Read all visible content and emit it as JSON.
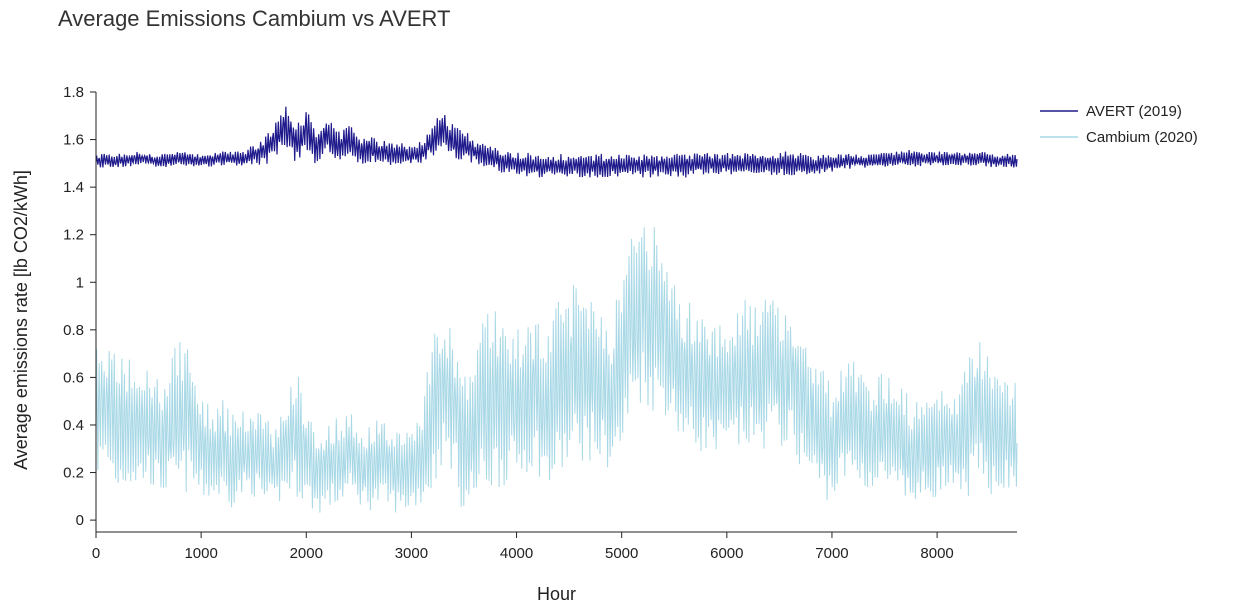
{
  "chart_data": {
    "type": "line",
    "title": "Average Emissions Cambium vs AVERT",
    "xlabel": "Hour",
    "ylabel": "Average emissions rate [lb CO2/kWh]",
    "xlim": [
      0,
      8760
    ],
    "ylim": [
      -0.05,
      1.8
    ],
    "x_ticks": [
      0,
      1000,
      2000,
      3000,
      4000,
      5000,
      6000,
      7000,
      8000
    ],
    "y_ticks": [
      0,
      0.2,
      0.4,
      0.6,
      0.8,
      1,
      1.2,
      1.4,
      1.6,
      1.8
    ],
    "y_tick_labels": [
      "0",
      "0.2",
      "0.4",
      "0.6",
      "0.8",
      "1",
      "1.2",
      "1.4",
      "1.6",
      "1.8"
    ],
    "grid": false,
    "legend_position": "top-right",
    "series": [
      {
        "name": "AVERT (2019)",
        "color": "#1f1a8c",
        "x": [
          0,
          200,
          400,
          600,
          800,
          1000,
          1200,
          1400,
          1600,
          1700,
          1800,
          1900,
          2000,
          2100,
          2200,
          2300,
          2400,
          2500,
          2600,
          2700,
          2800,
          2900,
          3000,
          3100,
          3200,
          3300,
          3400,
          3500,
          3600,
          3700,
          3800,
          3900,
          4000,
          4200,
          4400,
          4600,
          4800,
          5000,
          5200,
          5400,
          5600,
          5800,
          6000,
          6200,
          6400,
          6600,
          6800,
          7000,
          7200,
          7400,
          7600,
          7800,
          8000,
          8200,
          8400,
          8600,
          8760
        ],
        "y": [
          1.51,
          1.51,
          1.52,
          1.51,
          1.52,
          1.51,
          1.52,
          1.52,
          1.55,
          1.6,
          1.66,
          1.58,
          1.64,
          1.57,
          1.62,
          1.56,
          1.6,
          1.55,
          1.56,
          1.55,
          1.54,
          1.54,
          1.53,
          1.55,
          1.6,
          1.64,
          1.59,
          1.58,
          1.55,
          1.53,
          1.52,
          1.5,
          1.5,
          1.49,
          1.49,
          1.49,
          1.49,
          1.49,
          1.49,
          1.49,
          1.49,
          1.5,
          1.5,
          1.5,
          1.5,
          1.5,
          1.49,
          1.5,
          1.51,
          1.51,
          1.52,
          1.52,
          1.52,
          1.52,
          1.52,
          1.51,
          1.51
        ],
        "band": [
          0.03,
          0.03,
          0.03,
          0.03,
          0.03,
          0.03,
          0.03,
          0.03,
          0.06,
          0.08,
          0.1,
          0.08,
          0.09,
          0.08,
          0.08,
          0.07,
          0.07,
          0.06,
          0.06,
          0.05,
          0.05,
          0.05,
          0.04,
          0.05,
          0.07,
          0.08,
          0.07,
          0.07,
          0.05,
          0.05,
          0.05,
          0.05,
          0.05,
          0.05,
          0.05,
          0.05,
          0.05,
          0.05,
          0.05,
          0.05,
          0.05,
          0.05,
          0.05,
          0.05,
          0.05,
          0.05,
          0.05,
          0.04,
          0.03,
          0.03,
          0.03,
          0.04,
          0.03,
          0.03,
          0.03,
          0.03,
          0.03
        ]
      },
      {
        "name": "Cambium (2020)",
        "color": "#a8d8e6",
        "x": [
          0,
          100,
          200,
          300,
          400,
          500,
          600,
          700,
          800,
          900,
          1000,
          1100,
          1200,
          1300,
          1400,
          1500,
          1600,
          1700,
          1800,
          1900,
          2000,
          2100,
          2200,
          2300,
          2400,
          2500,
          2600,
          2700,
          2800,
          2900,
          3000,
          3100,
          3200,
          3300,
          3400,
          3500,
          3600,
          3700,
          3800,
          3900,
          4000,
          4100,
          4200,
          4300,
          4400,
          4500,
          4600,
          4700,
          4800,
          4900,
          5000,
          5100,
          5200,
          5300,
          5400,
          5500,
          5600,
          5700,
          5800,
          5900,
          6000,
          6100,
          6200,
          6300,
          6400,
          6500,
          6600,
          6700,
          6800,
          6900,
          7000,
          7100,
          7200,
          7300,
          7400,
          7500,
          7600,
          7700,
          7800,
          7900,
          8000,
          8100,
          8200,
          8300,
          8400,
          8500,
          8600,
          8700,
          8760
        ],
        "y": [
          0.45,
          0.48,
          0.4,
          0.42,
          0.38,
          0.4,
          0.35,
          0.38,
          0.45,
          0.42,
          0.3,
          0.28,
          0.3,
          0.25,
          0.28,
          0.3,
          0.25,
          0.22,
          0.3,
          0.38,
          0.28,
          0.2,
          0.22,
          0.25,
          0.28,
          0.24,
          0.22,
          0.25,
          0.22,
          0.2,
          0.22,
          0.28,
          0.45,
          0.55,
          0.5,
          0.3,
          0.4,
          0.5,
          0.52,
          0.5,
          0.48,
          0.52,
          0.55,
          0.45,
          0.55,
          0.6,
          0.65,
          0.62,
          0.58,
          0.52,
          0.65,
          0.85,
          0.9,
          0.85,
          0.8,
          0.7,
          0.62,
          0.6,
          0.58,
          0.55,
          0.55,
          0.6,
          0.62,
          0.58,
          0.65,
          0.62,
          0.6,
          0.52,
          0.45,
          0.38,
          0.32,
          0.4,
          0.42,
          0.38,
          0.35,
          0.38,
          0.35,
          0.3,
          0.28,
          0.3,
          0.32,
          0.35,
          0.3,
          0.4,
          0.48,
          0.4,
          0.38,
          0.35,
          0.35
        ],
        "band": [
          0.28,
          0.28,
          0.3,
          0.28,
          0.25,
          0.25,
          0.25,
          0.28,
          0.35,
          0.3,
          0.22,
          0.2,
          0.22,
          0.2,
          0.18,
          0.2,
          0.2,
          0.18,
          0.2,
          0.28,
          0.22,
          0.18,
          0.18,
          0.2,
          0.18,
          0.18,
          0.18,
          0.2,
          0.18,
          0.18,
          0.18,
          0.22,
          0.35,
          0.3,
          0.3,
          0.3,
          0.35,
          0.4,
          0.4,
          0.35,
          0.32,
          0.32,
          0.35,
          0.35,
          0.38,
          0.4,
          0.4,
          0.38,
          0.35,
          0.32,
          0.4,
          0.4,
          0.4,
          0.4,
          0.35,
          0.32,
          0.3,
          0.32,
          0.3,
          0.3,
          0.3,
          0.32,
          0.32,
          0.32,
          0.32,
          0.32,
          0.3,
          0.3,
          0.3,
          0.28,
          0.25,
          0.25,
          0.25,
          0.25,
          0.25,
          0.25,
          0.28,
          0.25,
          0.22,
          0.22,
          0.22,
          0.25,
          0.25,
          0.3,
          0.35,
          0.3,
          0.25,
          0.25,
          0.25
        ]
      }
    ]
  }
}
